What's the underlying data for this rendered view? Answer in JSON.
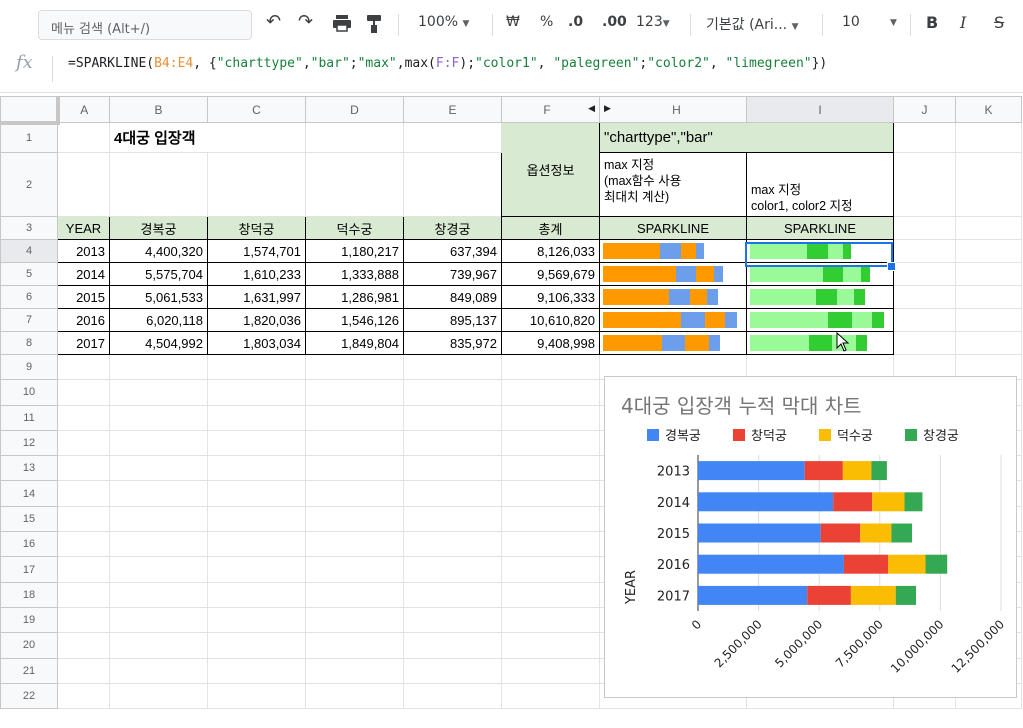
{
  "toolbar": {
    "menu_search_placeholder": "메뉴 검색 (Alt+/)",
    "zoom": "100%",
    "currency": "₩",
    "percent": "%",
    "dec_decrease": ".0",
    "dec_increase": ".00",
    "number_format": "123",
    "font_family": "기본값 (Ari...",
    "font_size": "10",
    "bold": "B",
    "italic": "I",
    "strike": "S"
  },
  "formula_bar": {
    "fx": "fx",
    "p1": "=SPARKLINE(",
    "ref1": "B4:E4",
    "p2": ", {",
    "s1": "\"charttype\"",
    "p3": ",",
    "s2": "\"bar\"",
    "p4": ";",
    "s3": "\"max\"",
    "p5": ",max(",
    "ref2": "F:F",
    "p6": ");",
    "s4": "\"color1\"",
    "p7": ", ",
    "s5": "\"palegreen\"",
    "p8": ";",
    "s6": "\"color2\"",
    "p9": ", ",
    "s7": "\"limegreen\"",
    "p10": "})"
  },
  "columns": [
    "A",
    "B",
    "C",
    "D",
    "E",
    "F",
    "H",
    "I",
    "J",
    "K"
  ],
  "rows": [
    "1",
    "2",
    "3",
    "4",
    "5",
    "6",
    "7",
    "8",
    "9",
    "10",
    "11",
    "12",
    "13",
    "14",
    "15",
    "16",
    "17",
    "18",
    "19",
    "20",
    "21",
    "22"
  ],
  "sheet": {
    "title": "4대궁 입장객",
    "option_info": "옵션정보",
    "h1": "\"charttype\",\"bar\"",
    "h2_line1": "max 지정",
    "h2_line2": "(max함수 사용",
    "h2_line3": "최대치 계산)",
    "i2_line1": "max 지정",
    "i2_line2": "color1, color2 지정",
    "headers": [
      "YEAR",
      "경복궁",
      "창덕궁",
      "덕수궁",
      "창경궁",
      "총계",
      "SPARKLINE",
      "SPARKLINE"
    ],
    "data": [
      [
        "2013",
        "4,400,320",
        "1,574,701",
        "1,180,217",
        "637,394",
        "8,126,033"
      ],
      [
        "2014",
        "5,575,704",
        "1,610,233",
        "1,333,888",
        "739,967",
        "9,569,679"
      ],
      [
        "2015",
        "5,061,533",
        "1,631,997",
        "1,286,981",
        "849,089",
        "9,106,333"
      ],
      [
        "2016",
        "6,020,118",
        "1,820,036",
        "1,546,126",
        "895,137",
        "10,610,820"
      ],
      [
        "2017",
        "4,504,992",
        "1,803,034",
        "1,849,804",
        "835,972",
        "9,408,998"
      ]
    ]
  },
  "sparkline_colors": {
    "h": [
      "#ff9900",
      "#6d9eeb"
    ],
    "i": [
      "#98fb98",
      "#32cd32"
    ]
  },
  "chart_data": {
    "type": "bar",
    "orientation": "horizontal",
    "stacked": true,
    "title": "4대궁 입장객 누적 막대 차트",
    "ylabel": "YEAR",
    "categories": [
      "2013",
      "2014",
      "2015",
      "2016",
      "2017"
    ],
    "series": [
      {
        "name": "경복궁",
        "color": "#4285f4",
        "values": [
          4400320,
          5575704,
          5061533,
          6020118,
          4504992
        ]
      },
      {
        "name": "창덕궁",
        "color": "#ea4335",
        "values": [
          1574701,
          1610233,
          1631997,
          1820036,
          1803034
        ]
      },
      {
        "name": "덕수궁",
        "color": "#fbbc04",
        "values": [
          1180217,
          1333888,
          1286981,
          1546126,
          1849804
        ]
      },
      {
        "name": "창경궁",
        "color": "#34a853",
        "values": [
          637394,
          739967,
          849089,
          895137,
          835972
        ]
      }
    ],
    "xlim": [
      0,
      12500000
    ],
    "xticks": [
      "0",
      "2,500,000",
      "5,000,000",
      "7,500,000",
      "10,000,000",
      "12,500,000"
    ],
    "legend_position": "top",
    "grid": true
  }
}
